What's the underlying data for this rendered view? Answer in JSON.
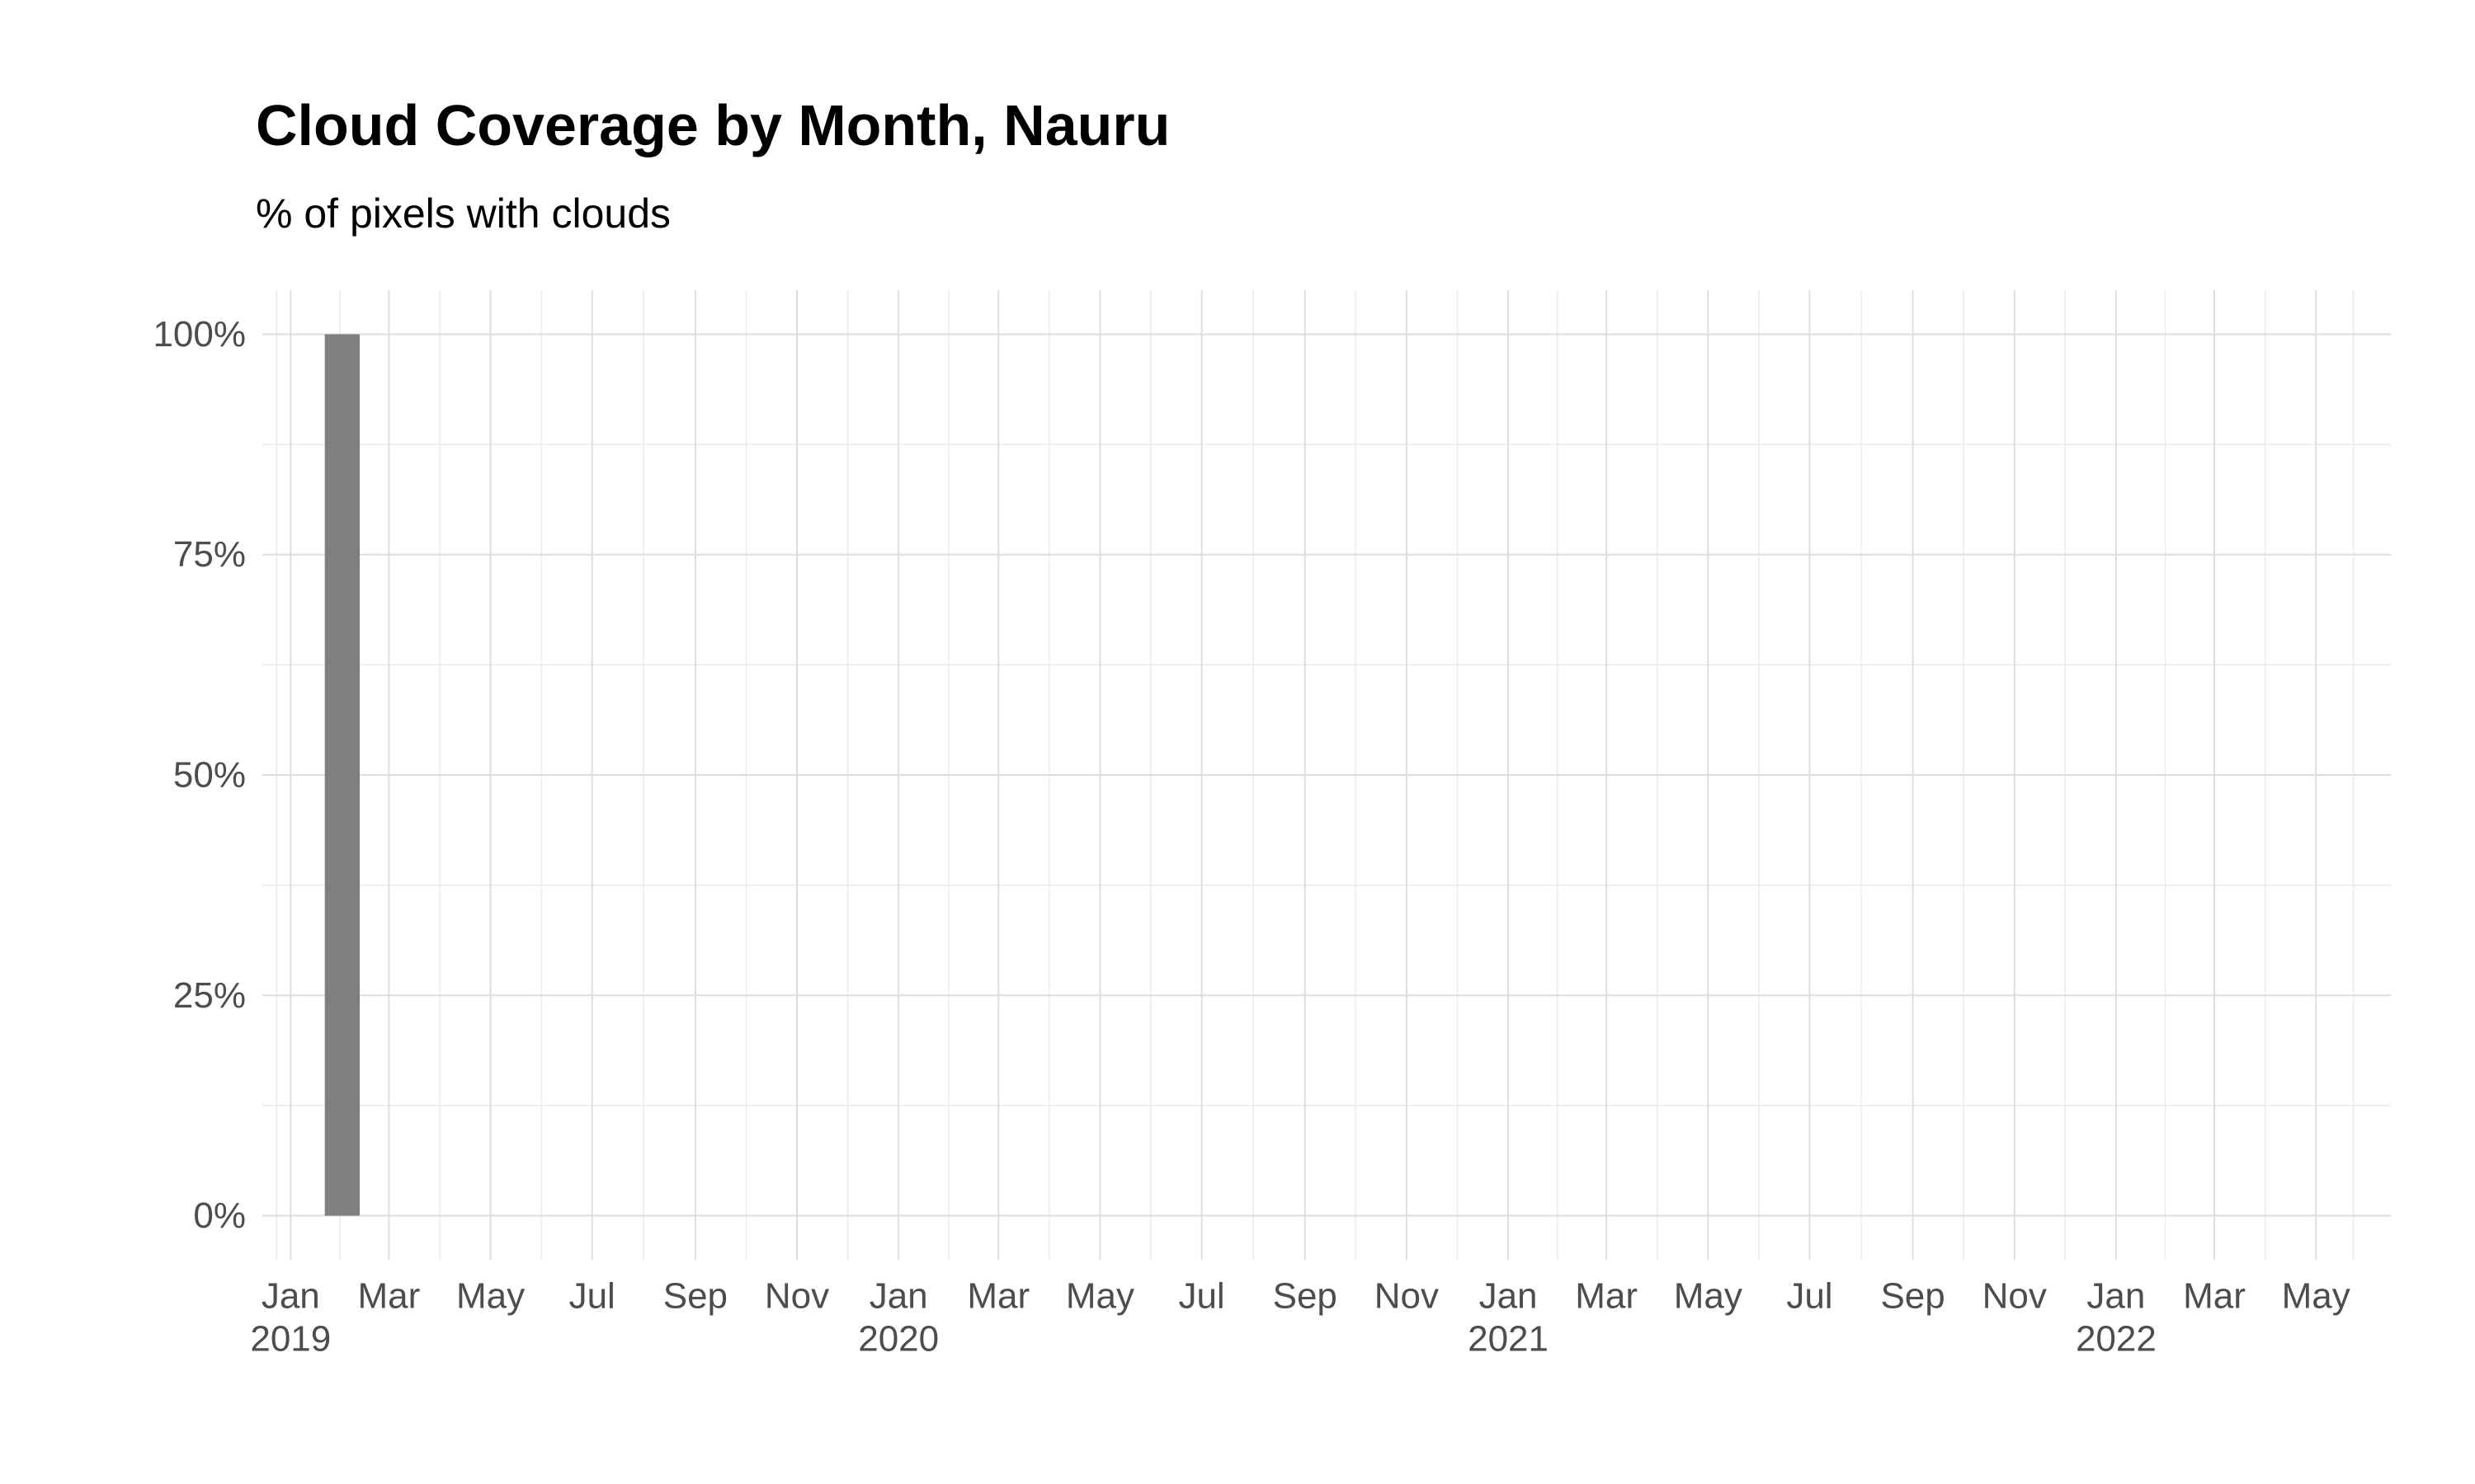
{
  "chart_data": {
    "type": "bar",
    "title": "Cloud Coverage by Month, Nauru",
    "subtitle": "% of pixels with clouds",
    "xlabel": "",
    "ylabel": "",
    "x_axis": {
      "type": "date",
      "range": [
        "2018-12-15",
        "2022-06-15"
      ],
      "tick_labels": [
        {
          "date": "2019-01-01",
          "month": "Jan",
          "year": "2019"
        },
        {
          "date": "2019-03-01",
          "month": "Mar",
          "year": ""
        },
        {
          "date": "2019-05-01",
          "month": "May",
          "year": ""
        },
        {
          "date": "2019-07-01",
          "month": "Jul",
          "year": ""
        },
        {
          "date": "2019-09-01",
          "month": "Sep",
          "year": ""
        },
        {
          "date": "2019-11-01",
          "month": "Nov",
          "year": ""
        },
        {
          "date": "2020-01-01",
          "month": "Jan",
          "year": "2020"
        },
        {
          "date": "2020-03-01",
          "month": "Mar",
          "year": ""
        },
        {
          "date": "2020-05-01",
          "month": "May",
          "year": ""
        },
        {
          "date": "2020-07-01",
          "month": "Jul",
          "year": ""
        },
        {
          "date": "2020-09-01",
          "month": "Sep",
          "year": ""
        },
        {
          "date": "2020-11-01",
          "month": "Nov",
          "year": ""
        },
        {
          "date": "2021-01-01",
          "month": "Jan",
          "year": "2021"
        },
        {
          "date": "2021-03-01",
          "month": "Mar",
          "year": ""
        },
        {
          "date": "2021-05-01",
          "month": "May",
          "year": ""
        },
        {
          "date": "2021-07-01",
          "month": "Jul",
          "year": ""
        },
        {
          "date": "2021-09-01",
          "month": "Sep",
          "year": ""
        },
        {
          "date": "2021-11-01",
          "month": "Nov",
          "year": ""
        },
        {
          "date": "2022-01-01",
          "month": "Jan",
          "year": "2022"
        },
        {
          "date": "2022-03-01",
          "month": "Mar",
          "year": ""
        },
        {
          "date": "2022-05-01",
          "month": "May",
          "year": ""
        }
      ]
    },
    "y_axis": {
      "range": [
        -5,
        105
      ],
      "ticks": [
        0,
        25,
        50,
        75,
        100
      ],
      "tick_labels": [
        "0%",
        "25%",
        "50%",
        "75%",
        "100%"
      ]
    },
    "series": [
      {
        "points": [
          {
            "x": "2019-02-01",
            "y": 100
          }
        ]
      }
    ],
    "bar_color": "#7f7f7f",
    "grid": true,
    "legend": "none"
  }
}
